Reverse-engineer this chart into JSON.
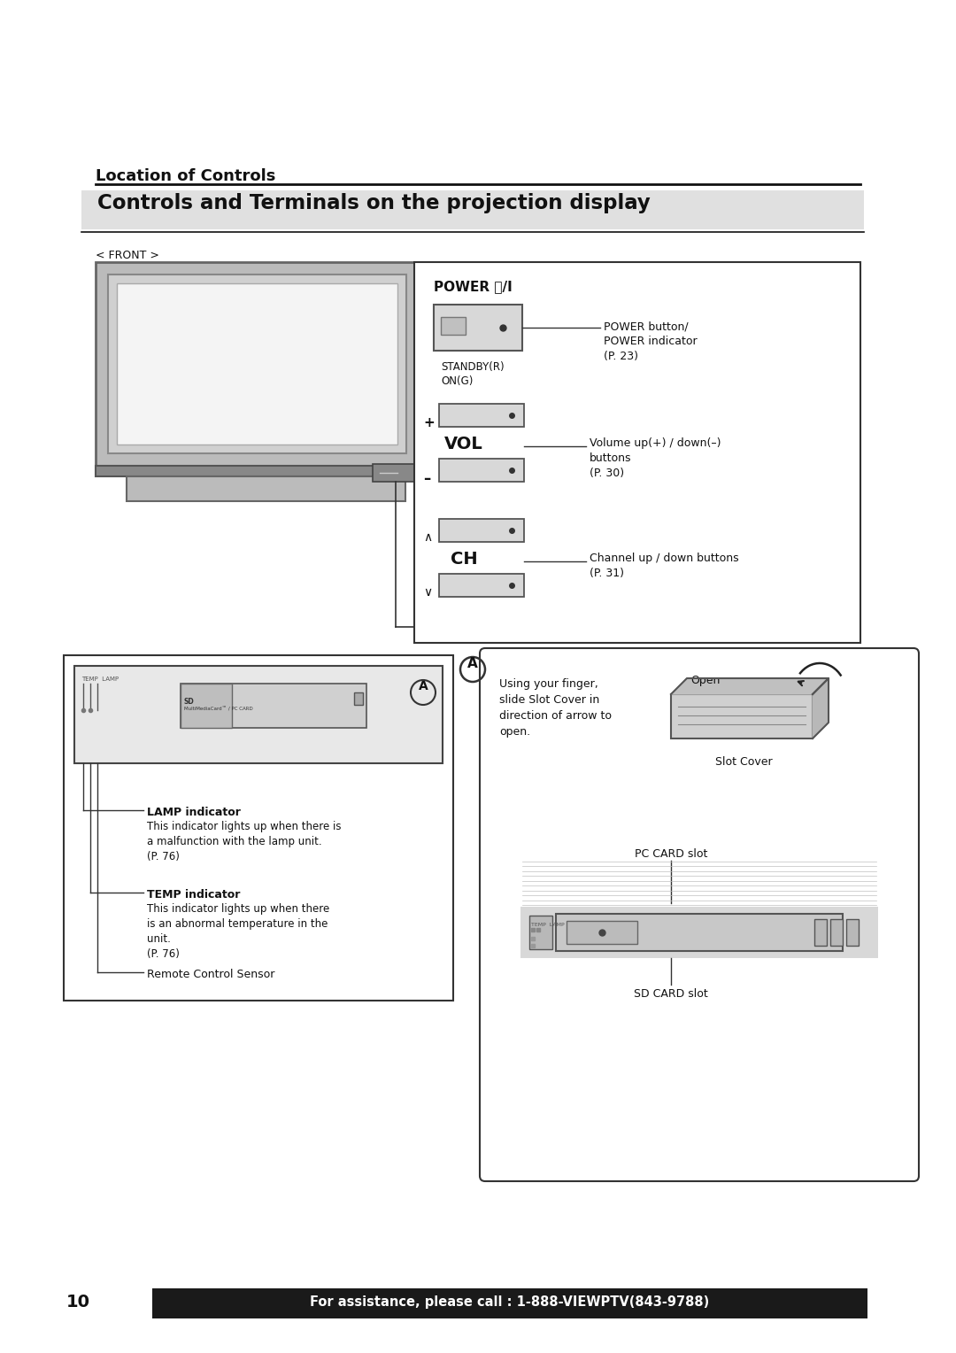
{
  "bg_color": "#ffffff",
  "page_num": "10",
  "footer_text": "For assistance, please call : 1-888-VIEWPTV(843-9788)",
  "footer_bg": "#1a1a1a",
  "section_title": "Location of Controls",
  "main_title": "Controls and Terminals on the projection display",
  "front_label": "< FRONT >",
  "power_title": "POWER ⏻/I",
  "power_button_label": "POWER button/\nPOWER indicator\n(P. 23)",
  "standby_label": "STANDBY(R)\nON(G)",
  "vol_label": "VOL",
  "vol_plus": "+",
  "vol_minus": "–",
  "vol_desc": "Volume up(+) / down(–)\nbuttons\n(P. 30)",
  "ch_label": "CH",
  "ch_up": "∧",
  "ch_down": "∨",
  "ch_desc": "Channel up / down buttons\n(P. 31)",
  "lamp_title": "LAMP indicator",
  "lamp_desc": "This indicator lights up when there is\na malfunction with the lamp unit.\n(P. 76)",
  "temp_title": "TEMP indicator",
  "temp_desc": "This indicator lights up when there\nis an abnormal temperature in the\nunit.\n(P. 76)",
  "remote_label": "Remote Control Sensor",
  "circle_a": "A",
  "slot_desc": "Using your finger,\nslide Slot Cover in\ndirection of arrow to\nopen.",
  "open_label": "Open",
  "slot_cover_label": "Slot Cover",
  "pc_card_label": "PC CARD slot",
  "sd_card_label": "SD CARD slot",
  "tv_outer_color": "#888888",
  "tv_frame_color": "#aaaaaa",
  "tv_bezel_color": "#cccccc",
  "tv_screen_color": "#f0f0f0",
  "tv_base_color": "#999999",
  "btn_face_color": "#d8d8d8",
  "btn_edge_color": "#555555",
  "box_edge_color": "#333333"
}
